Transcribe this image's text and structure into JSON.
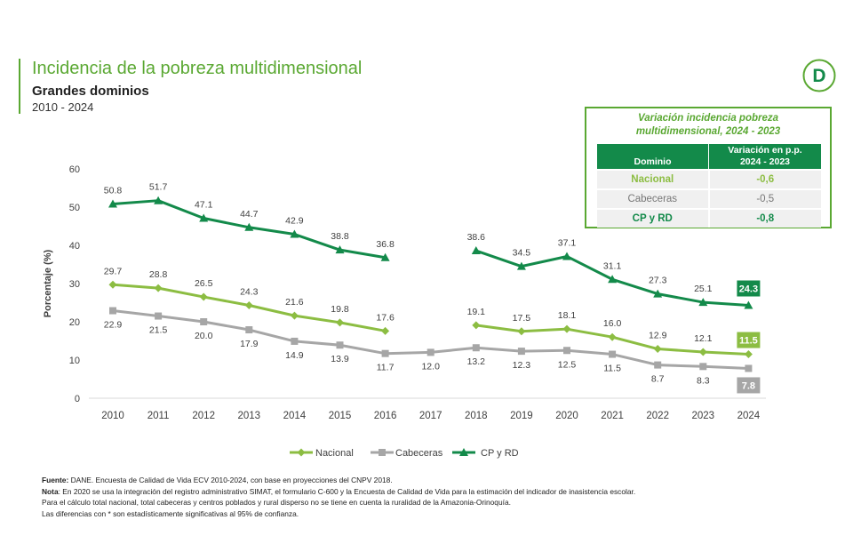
{
  "header": {
    "title": "Incidencia de la pobreza multidimensional",
    "subtitle": "Grandes dominios",
    "period": "2010 - 2024",
    "logo_letter": "D"
  },
  "variation_box": {
    "title_line1": "Variación incidencia pobreza",
    "title_line2": "multidimensional, 2024 - 2023",
    "col_domain": "Dominio",
    "col_change_line1": "Variación en p.p.",
    "col_change_line2": "2024 - 2023",
    "rows": [
      {
        "domain": "Nacional",
        "change": "-0,6"
      },
      {
        "domain": "Cabeceras",
        "change": "-0,5"
      },
      {
        "domain": "CP y RD",
        "change": "-0,8"
      }
    ]
  },
  "chart_data": {
    "type": "line",
    "ylabel": "Porcentaje (%)",
    "ylim": [
      0,
      60
    ],
    "yticks": [
      0,
      10,
      20,
      30,
      40,
      50,
      60
    ],
    "categories": [
      "2010",
      "2011",
      "2012",
      "2013",
      "2014",
      "2015",
      "2016",
      "2017",
      "2018",
      "2019",
      "2020",
      "2021",
      "2022",
      "2023",
      "2024"
    ],
    "series": [
      {
        "name": "Nacional",
        "color": "#8cbd42",
        "marker": "diamond",
        "values": [
          29.7,
          28.8,
          26.5,
          24.3,
          21.6,
          19.8,
          17.6,
          null,
          19.1,
          17.5,
          18.1,
          16.0,
          12.9,
          12.1,
          11.5
        ],
        "labels": [
          "29.7",
          "28.8",
          "26.5",
          "24.3",
          "21.6",
          "19.8",
          "17.6",
          "",
          "19.1",
          "17.5",
          "18.1",
          "16.0",
          "12.9",
          "12.1",
          "11.5"
        ]
      },
      {
        "name": "Cabeceras",
        "color": "#a6a6a6",
        "marker": "square",
        "values": [
          22.9,
          21.5,
          20.0,
          17.9,
          14.9,
          13.9,
          11.7,
          12.0,
          13.2,
          12.3,
          12.5,
          11.5,
          8.7,
          8.3,
          7.8
        ],
        "labels": [
          "22.9",
          "21.5",
          "20.0",
          "17.9",
          "14.9",
          "13.9",
          "11.7",
          "12.0",
          "13.2",
          "12.3",
          "12.5",
          "11.5",
          "8.7",
          "8.3",
          "7.8"
        ]
      },
      {
        "name": "CP y RD",
        "color": "#138a4a",
        "marker": "triangle",
        "values": [
          50.8,
          51.7,
          47.1,
          44.7,
          42.9,
          38.8,
          36.8,
          null,
          38.6,
          34.5,
          37.1,
          31.1,
          27.3,
          25.1,
          24.3
        ],
        "labels": [
          "50.8",
          "51.7",
          "47.1",
          "44.7",
          "42.9",
          "38.8",
          "36.8",
          "",
          "38.6",
          "34.5",
          "37.1",
          "31.1",
          "27.3",
          "25.1",
          "24.3"
        ]
      }
    ]
  },
  "footnote": {
    "source_label": "Fuente:",
    "source_text": " DANE. Encuesta de Calidad de Vida ECV 2010-2024, con base en proyecciones del CNPV 2018.",
    "note_label": "Nota",
    "note_text": ": En 2020 se usa la integración del registro administrativo SIMAT, el formulario C-600 y la Encuesta de Calidad de Vida para la estimación del indicador de inasistencia escolar.",
    "line3": "Para el cálculo total nacional, total cabeceras y centros poblados y rural disperso no se tiene en cuenta la ruralidad de la Amazonia-Orinoquía.",
    "line4": "Las diferencias con * son estadísticamente significativas al 95% de confianza."
  }
}
